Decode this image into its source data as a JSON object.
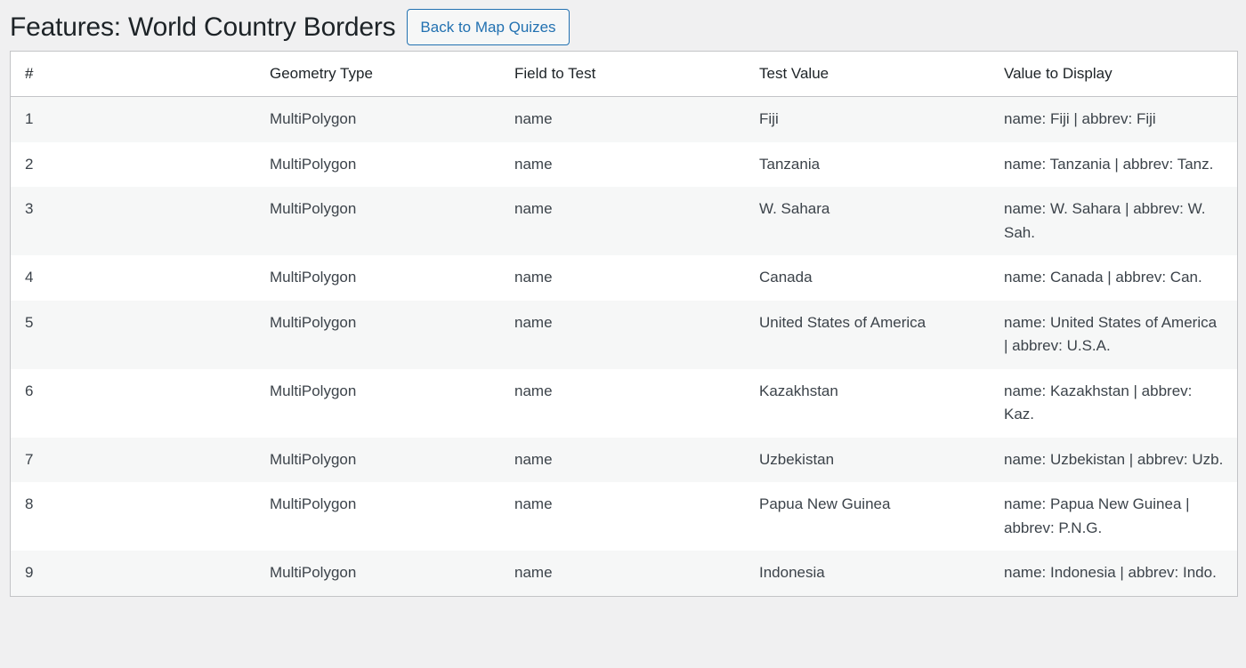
{
  "page": {
    "title": "Features: World Country Borders",
    "back_button": "Back to Map Quizes"
  },
  "table": {
    "headers": [
      "#",
      "Geometry Type",
      "Field to Test",
      "Test Value",
      "Value to Display"
    ],
    "rows": [
      [
        "1",
        "MultiPolygon",
        "name",
        "Fiji",
        "name: Fiji | abbrev: Fiji"
      ],
      [
        "2",
        "MultiPolygon",
        "name",
        "Tanzania",
        "name: Tanzania | abbrev: Tanz."
      ],
      [
        "3",
        "MultiPolygon",
        "name",
        "W. Sahara",
        "name: W. Sahara | abbrev: W. Sah."
      ],
      [
        "4",
        "MultiPolygon",
        "name",
        "Canada",
        "name: Canada | abbrev: Can."
      ],
      [
        "5",
        "MultiPolygon",
        "name",
        "United States of America",
        "name: United States of America | abbrev: U.S.A."
      ],
      [
        "6",
        "MultiPolygon",
        "name",
        "Kazakhstan",
        "name: Kazakhstan | abbrev: Kaz."
      ],
      [
        "7",
        "MultiPolygon",
        "name",
        "Uzbekistan",
        "name: Uzbekistan | abbrev: Uzb."
      ],
      [
        "8",
        "MultiPolygon",
        "name",
        "Papua New Guinea",
        "name: Papua New Guinea | abbrev: P.N.G."
      ],
      [
        "9",
        "MultiPolygon",
        "name",
        "Indonesia",
        "name: Indonesia | abbrev: Indo."
      ]
    ]
  }
}
